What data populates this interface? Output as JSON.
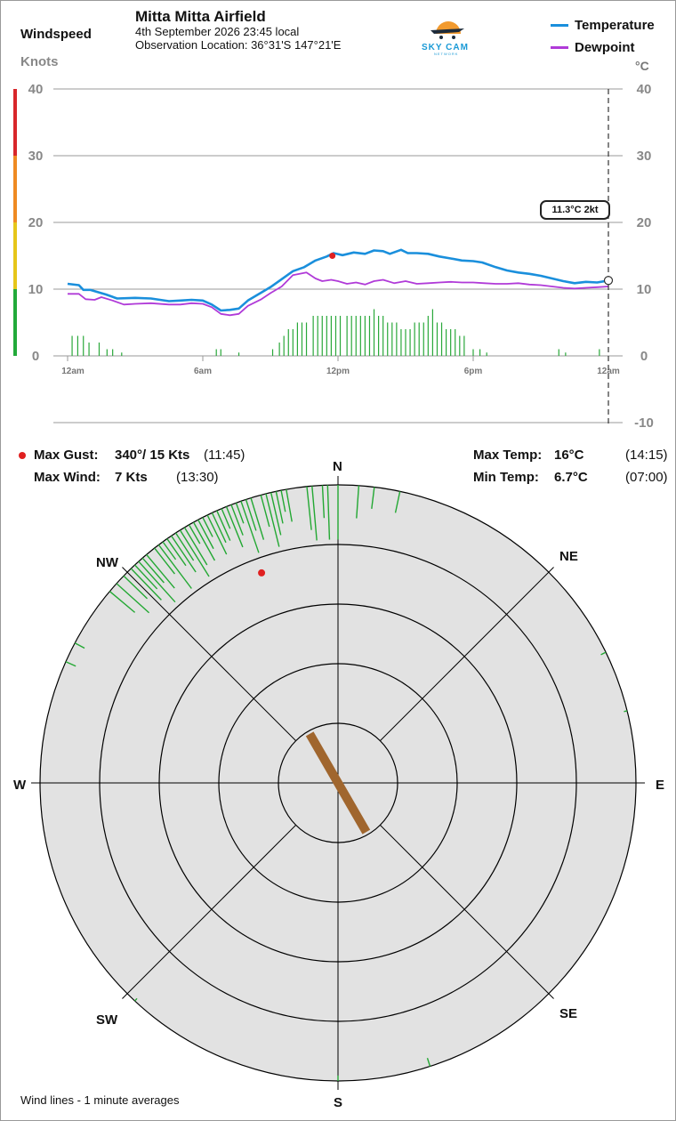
{
  "header": {
    "station": "Mitta Mitta Airfield",
    "datetime": "4th September 2026  23:45 local",
    "location": "Observation Location: 36°31'S 147°21'E",
    "left_title": "Windspeed",
    "left_unit": "Knots",
    "right_unit": "°C",
    "logo_text": "SKY CAM",
    "logo_sub": "NETWORK"
  },
  "legend": {
    "temperature": "Temperature",
    "dewpoint": "Dewpoint",
    "temperature_color": "#1a8fdc",
    "dewpoint_color": "#b03ad8"
  },
  "readout": "11.3°C  2kt",
  "stats": {
    "max_gust_label": "Max Gust:",
    "max_gust_value": "340°/ 15 Kts",
    "max_gust_time": "(11:45)",
    "max_wind_label": "Max Wind:",
    "max_wind_value": "7 Kts",
    "max_wind_time": "(13:30)",
    "max_temp_label": "Max Temp:",
    "max_temp_value": "16°C",
    "max_temp_time": "(14:15)",
    "min_temp_label": "Min Temp:",
    "min_temp_value": "6.7°C",
    "min_temp_time": "(07:00)"
  },
  "compass": {
    "N": "N",
    "NE": "NE",
    "E": "E",
    "SE": "SE",
    "S": "S",
    "SW": "SW",
    "W": "W",
    "NW": "NW"
  },
  "footnote": "Wind lines - 1 minute averages",
  "chart_data": {
    "type": "line",
    "x_ticks": [
      "12am",
      "6am",
      "12pm",
      "6pm",
      "12am"
    ],
    "x_hours": [
      0,
      6,
      12,
      18,
      24
    ],
    "left_axis": {
      "ticks": [
        0,
        10,
        20,
        30,
        40
      ],
      "range": [
        0,
        40
      ],
      "unit": "Knots"
    },
    "right_axis": {
      "ticks": [
        -10,
        0,
        10,
        20,
        30,
        40
      ],
      "range": [
        -10,
        40
      ],
      "unit": "°C"
    },
    "windspeed_bands": [
      {
        "from": 0,
        "to": 10,
        "color": "#22aa3a"
      },
      {
        "from": 10,
        "to": 20,
        "color": "#e6c619"
      },
      {
        "from": 20,
        "to": 30,
        "color": "#ef8a22"
      },
      {
        "from": 30,
        "to": 40,
        "color": "#d8262a"
      }
    ],
    "series": [
      {
        "name": "Temperature",
        "color": "#1a8fdc",
        "points": [
          [
            0,
            10.8
          ],
          [
            0.5,
            10.6
          ],
          [
            0.7,
            9.9
          ],
          [
            1,
            9.9
          ],
          [
            1.3,
            9.6
          ],
          [
            1.7,
            9.2
          ],
          [
            2.2,
            8.6
          ],
          [
            3,
            8.7
          ],
          [
            3.7,
            8.6
          ],
          [
            4.5,
            8.2
          ],
          [
            5,
            8.3
          ],
          [
            5.5,
            8.4
          ],
          [
            6,
            8.3
          ],
          [
            6.4,
            7.7
          ],
          [
            6.8,
            6.8
          ],
          [
            7.2,
            6.9
          ],
          [
            7.6,
            7.1
          ],
          [
            8,
            8.3
          ],
          [
            8.6,
            9.5
          ],
          [
            9,
            10.3
          ],
          [
            9.5,
            11.5
          ],
          [
            10,
            12.7
          ],
          [
            10.5,
            13.3
          ],
          [
            11,
            14.3
          ],
          [
            11.5,
            14.9
          ],
          [
            11.8,
            15.4
          ],
          [
            12.2,
            15.1
          ],
          [
            12.7,
            15.5
          ],
          [
            13.2,
            15.3
          ],
          [
            13.6,
            15.8
          ],
          [
            14,
            15.7
          ],
          [
            14.3,
            15.3
          ],
          [
            14.8,
            15.9
          ],
          [
            15.1,
            15.4
          ],
          [
            15.5,
            15.4
          ],
          [
            16,
            15.3
          ],
          [
            16.5,
            14.9
          ],
          [
            17,
            14.6
          ],
          [
            17.5,
            14.3
          ],
          [
            18,
            14.2
          ],
          [
            18.4,
            14.0
          ],
          [
            19,
            13.3
          ],
          [
            19.5,
            12.8
          ],
          [
            20,
            12.5
          ],
          [
            20.5,
            12.3
          ],
          [
            21,
            12.0
          ],
          [
            21.5,
            11.6
          ],
          [
            22,
            11.2
          ],
          [
            22.5,
            10.9
          ],
          [
            23,
            11.1
          ],
          [
            23.5,
            11.0
          ],
          [
            24,
            11.3
          ]
        ]
      },
      {
        "name": "Dewpoint",
        "color": "#b03ad8",
        "points": [
          [
            0,
            9.3
          ],
          [
            0.5,
            9.3
          ],
          [
            0.8,
            8.5
          ],
          [
            1.2,
            8.4
          ],
          [
            1.5,
            8.8
          ],
          [
            2,
            8.3
          ],
          [
            2.5,
            7.7
          ],
          [
            3,
            7.8
          ],
          [
            3.7,
            7.9
          ],
          [
            4.5,
            7.7
          ],
          [
            5,
            7.7
          ],
          [
            5.5,
            7.9
          ],
          [
            6,
            7.8
          ],
          [
            6.4,
            7.3
          ],
          [
            6.8,
            6.3
          ],
          [
            7.2,
            6.1
          ],
          [
            7.6,
            6.3
          ],
          [
            8,
            7.5
          ],
          [
            8.6,
            8.5
          ],
          [
            9,
            9.4
          ],
          [
            9.5,
            10.4
          ],
          [
            10,
            12.1
          ],
          [
            10.6,
            12.5
          ],
          [
            11,
            11.6
          ],
          [
            11.3,
            11.2
          ],
          [
            11.7,
            11.4
          ],
          [
            12,
            11.2
          ],
          [
            12.4,
            10.8
          ],
          [
            12.8,
            11.0
          ],
          [
            13.2,
            10.7
          ],
          [
            13.6,
            11.2
          ],
          [
            14,
            11.4
          ],
          [
            14.5,
            10.9
          ],
          [
            15,
            11.2
          ],
          [
            15.5,
            10.8
          ],
          [
            16,
            10.9
          ],
          [
            16.5,
            11.0
          ],
          [
            17,
            11.1
          ],
          [
            17.5,
            11.0
          ],
          [
            18,
            11.0
          ],
          [
            18.5,
            10.9
          ],
          [
            19,
            10.8
          ],
          [
            19.5,
            10.8
          ],
          [
            20,
            10.9
          ],
          [
            20.5,
            10.7
          ],
          [
            21,
            10.6
          ],
          [
            21.5,
            10.4
          ],
          [
            22,
            10.2
          ],
          [
            22.5,
            10.1
          ],
          [
            23,
            10.2
          ],
          [
            23.5,
            10.3
          ],
          [
            24,
            10.4
          ]
        ]
      }
    ],
    "windspeed_bars": {
      "color": "#2aa83a",
      "values": [
        [
          0.2,
          3
        ],
        [
          0.45,
          3
        ],
        [
          0.7,
          3
        ],
        [
          0.95,
          2
        ],
        [
          1.4,
          2
        ],
        [
          1.75,
          1
        ],
        [
          2,
          1
        ],
        [
          2.4,
          0.5
        ],
        [
          6.6,
          1
        ],
        [
          6.8,
          1
        ],
        [
          7.6,
          0.5
        ],
        [
          9.1,
          1
        ],
        [
          9.4,
          2
        ],
        [
          9.6,
          3
        ],
        [
          9.8,
          4
        ],
        [
          10,
          4
        ],
        [
          10.2,
          5
        ],
        [
          10.4,
          5
        ],
        [
          10.6,
          5
        ],
        [
          10.9,
          6
        ],
        [
          11.1,
          6
        ],
        [
          11.3,
          6
        ],
        [
          11.5,
          6
        ],
        [
          11.7,
          6
        ],
        [
          11.9,
          6
        ],
        [
          12.1,
          6
        ],
        [
          12.4,
          6
        ],
        [
          12.6,
          6
        ],
        [
          12.8,
          6
        ],
        [
          13,
          6
        ],
        [
          13.2,
          6
        ],
        [
          13.4,
          6
        ],
        [
          13.6,
          7
        ],
        [
          13.8,
          6
        ],
        [
          14,
          6
        ],
        [
          14.2,
          5
        ],
        [
          14.4,
          5
        ],
        [
          14.6,
          5
        ],
        [
          14.8,
          4
        ],
        [
          15,
          4
        ],
        [
          15.2,
          4
        ],
        [
          15.4,
          5
        ],
        [
          15.6,
          5
        ],
        [
          15.8,
          5
        ],
        [
          16,
          6
        ],
        [
          16.2,
          7
        ],
        [
          16.4,
          5
        ],
        [
          16.6,
          5
        ],
        [
          16.8,
          4
        ],
        [
          17,
          4
        ],
        [
          17.2,
          4
        ],
        [
          17.4,
          3
        ],
        [
          17.6,
          3
        ],
        [
          18,
          1
        ],
        [
          18.3,
          1
        ],
        [
          18.6,
          0.5
        ],
        [
          21.8,
          1
        ],
        [
          22.1,
          0.5
        ],
        [
          23.6,
          1
        ]
      ]
    },
    "current": {
      "temperature": 11.3,
      "wind_kt": 2
    },
    "max_gust_marker": {
      "hour": 11.75,
      "kt": 15
    }
  },
  "wind_rose": {
    "rings": 5,
    "max_kts": 15,
    "segments": [
      [
        -50,
        3,
        15
      ],
      [
        -48,
        4,
        15
      ],
      [
        -46,
        3,
        15
      ],
      [
        -44,
        4,
        15
      ],
      [
        -43,
        3,
        14
      ],
      [
        -42,
        5,
        15
      ],
      [
        -41,
        3,
        15
      ],
      [
        -40,
        4,
        15
      ],
      [
        -38,
        3,
        15
      ],
      [
        -37,
        5,
        15
      ],
      [
        -36,
        2,
        15
      ],
      [
        -35,
        3,
        15
      ],
      [
        -34,
        4,
        15
      ],
      [
        -33,
        3,
        15
      ],
      [
        -32,
        5,
        15
      ],
      [
        -31,
        4,
        15
      ],
      [
        -30,
        2,
        15
      ],
      [
        -29,
        4,
        15
      ],
      [
        -28,
        3,
        15
      ],
      [
        -27,
        2,
        15
      ],
      [
        -26,
        4,
        15
      ],
      [
        -25,
        3,
        15
      ],
      [
        -24,
        3,
        15
      ],
      [
        -23,
        2,
        15
      ],
      [
        -22,
        4,
        15
      ],
      [
        -21,
        3,
        15
      ],
      [
        -20,
        2,
        15
      ],
      [
        -19,
        5,
        15
      ],
      [
        -18,
        3,
        15
      ],
      [
        -17,
        4,
        15
      ],
      [
        -15,
        3,
        15
      ],
      [
        -14,
        5,
        15
      ],
      [
        -13,
        4,
        15
      ],
      [
        -12,
        3,
        15
      ],
      [
        -11,
        2,
        15
      ],
      [
        -10,
        3,
        15
      ],
      [
        -6,
        4,
        15
      ],
      [
        -5,
        5,
        15
      ],
      [
        -3,
        3,
        15
      ],
      [
        -2,
        5,
        15
      ],
      [
        0,
        5,
        15
      ],
      [
        4,
        3,
        15
      ],
      [
        7,
        2,
        15
      ],
      [
        12,
        2,
        15
      ],
      [
        64,
        0.5,
        15
      ],
      [
        76,
        0.3,
        15
      ],
      [
        162,
        0.8,
        15
      ],
      [
        180,
        0.5,
        15
      ],
      [
        223,
        0.3,
        15
      ],
      [
        -62,
        1,
        15
      ],
      [
        -66,
        1,
        15
      ]
    ],
    "gust": {
      "direction_deg": 340,
      "kts": 15
    },
    "current": {
      "direction_deg": 330,
      "kts": 2
    }
  }
}
